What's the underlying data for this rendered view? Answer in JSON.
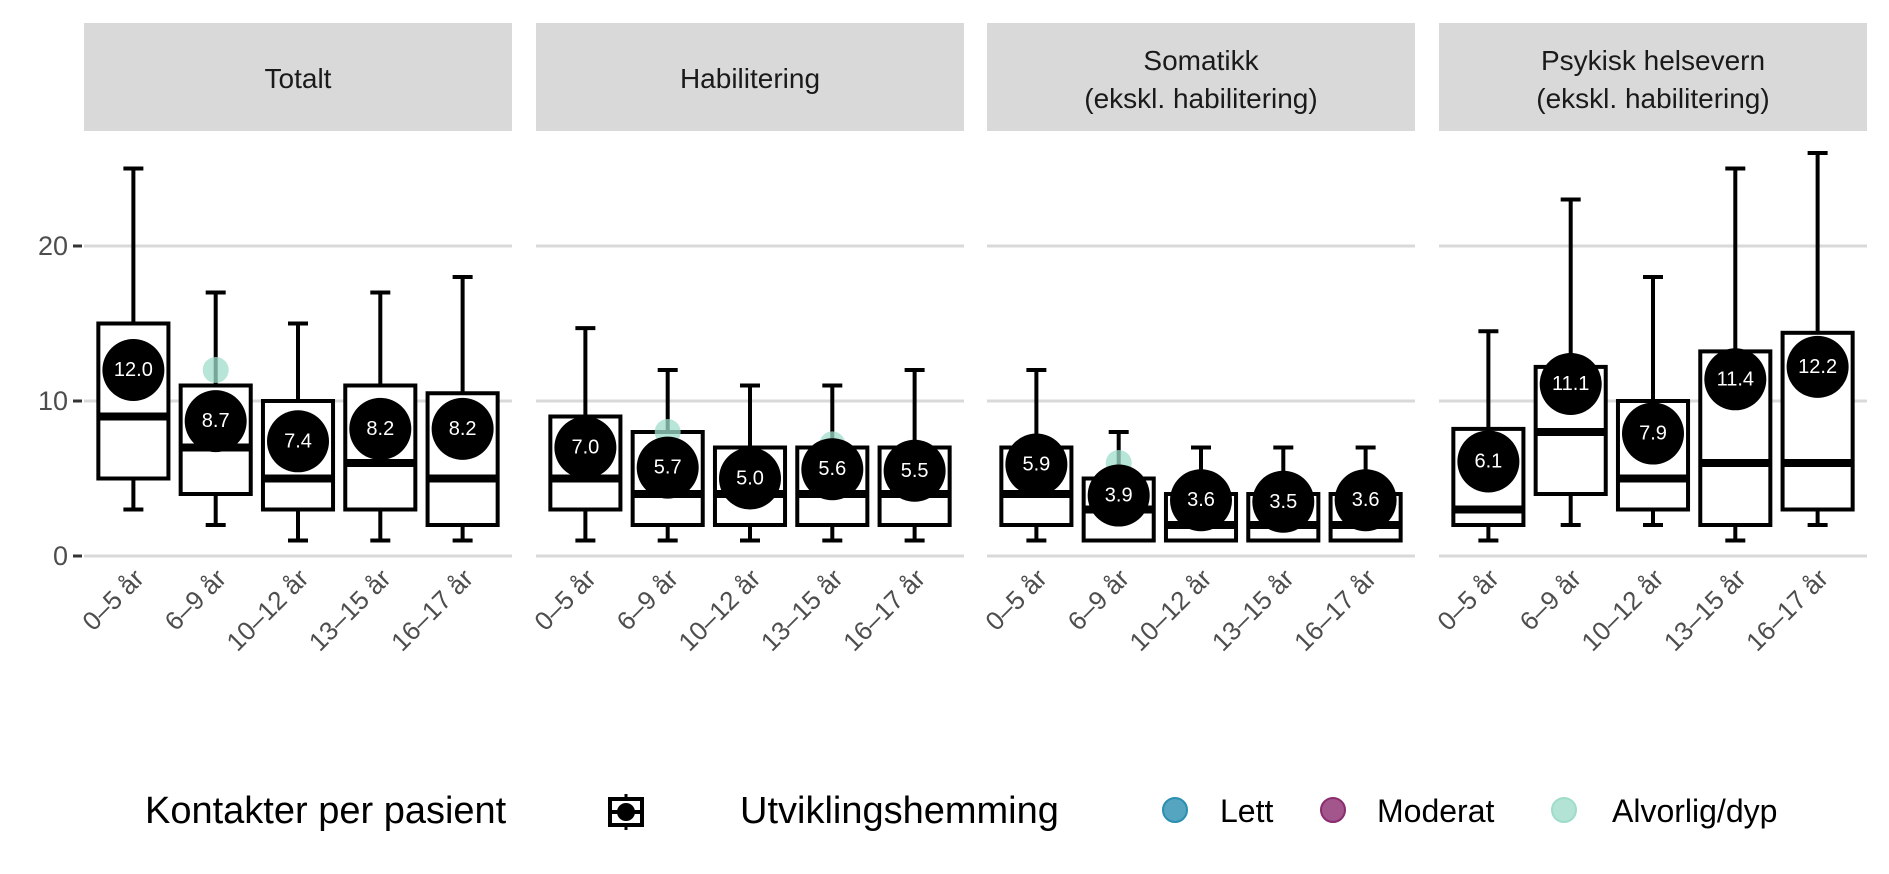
{
  "chart_data": {
    "type": "boxplot",
    "facets": [
      "Totalt",
      "Habilitering",
      "Somatikk\n(ekskl. habilitering)",
      "Psykisk helsevern\n(ekskl. habilitering)"
    ],
    "categories": [
      "0–5 år",
      "6–9 år",
      "10–12 år",
      "13–15 år",
      "16–17 år"
    ],
    "ylim": [
      0,
      26.5
    ],
    "yticks": [
      0,
      10,
      20
    ],
    "grid": true,
    "xlabel": "",
    "ylabel": "",
    "panels": [
      {
        "facet": "Totalt",
        "boxes": [
          {
            "min": 3,
            "q1": 5,
            "median": 9,
            "q3": 15,
            "max": 25,
            "mean": 12.0,
            "mean_label": "12.0"
          },
          {
            "min": 2,
            "q1": 4,
            "median": 7,
            "q3": 11,
            "max": 17,
            "mean": 8.7,
            "mean_label": "8.7"
          },
          {
            "min": 1,
            "q1": 3,
            "median": 5,
            "q3": 10,
            "max": 15,
            "mean": 7.4,
            "mean_label": "7.4"
          },
          {
            "min": 1,
            "q1": 3,
            "median": 6,
            "q3": 11,
            "max": 17,
            "mean": 8.2,
            "mean_label": "8.2"
          },
          {
            "min": 1,
            "q1": 2,
            "median": 5,
            "q3": 10.5,
            "max": 18,
            "mean": 8.2,
            "mean_label": "8.2"
          }
        ],
        "points": [
          {
            "category": 1,
            "group": "Alvorlig/dyp",
            "value": 12
          }
        ]
      },
      {
        "facet": "Habilitering",
        "boxes": [
          {
            "min": 1,
            "q1": 3,
            "median": 5,
            "q3": 9,
            "max": 14.7,
            "mean": 7.0,
            "mean_label": "7.0"
          },
          {
            "min": 1,
            "q1": 2,
            "median": 4,
            "q3": 8,
            "max": 12,
            "mean": 5.7,
            "mean_label": "5.7"
          },
          {
            "min": 1,
            "q1": 2,
            "median": 4,
            "q3": 7,
            "max": 11,
            "mean": 5.0,
            "mean_label": "5.0"
          },
          {
            "min": 1,
            "q1": 2,
            "median": 4,
            "q3": 7,
            "max": 11,
            "mean": 5.6,
            "mean_label": "5.6"
          },
          {
            "min": 1,
            "q1": 2,
            "median": 4,
            "q3": 7,
            "max": 12,
            "mean": 5.5,
            "mean_label": "5.5"
          }
        ],
        "points": [
          {
            "category": 1,
            "group": "Alvorlig/dyp",
            "value": 8
          },
          {
            "category": 3,
            "group": "Alvorlig/dyp",
            "value": 7.2
          }
        ]
      },
      {
        "facet": "Somatikk (ekskl. habilitering)",
        "boxes": [
          {
            "min": 1,
            "q1": 2,
            "median": 4,
            "q3": 7,
            "max": 12,
            "mean": 5.9,
            "mean_label": "5.9"
          },
          {
            "min": 1,
            "q1": 1,
            "median": 3,
            "q3": 5,
            "max": 8,
            "mean": 3.9,
            "mean_label": "3.9"
          },
          {
            "min": 1,
            "q1": 1,
            "median": 2,
            "q3": 4,
            "max": 7,
            "mean": 3.6,
            "mean_label": "3.6"
          },
          {
            "min": 1,
            "q1": 1,
            "median": 2,
            "q3": 4,
            "max": 7,
            "mean": 3.5,
            "mean_label": "3.5"
          },
          {
            "min": 1,
            "q1": 1,
            "median": 2,
            "q3": 4,
            "max": 7,
            "mean": 3.6,
            "mean_label": "3.6"
          }
        ],
        "points": [
          {
            "category": 1,
            "group": "Alvorlig/dyp",
            "value": 6
          }
        ]
      },
      {
        "facet": "Psykisk helsevern (ekskl. habilitering)",
        "boxes": [
          {
            "min": 1,
            "q1": 2,
            "median": 3,
            "q3": 8.2,
            "max": 14.5,
            "mean": 6.1,
            "mean_label": "6.1"
          },
          {
            "min": 2,
            "q1": 4,
            "median": 8,
            "q3": 12.2,
            "max": 23,
            "mean": 11.1,
            "mean_label": "11.1"
          },
          {
            "min": 2,
            "q1": 3,
            "median": 5,
            "q3": 10,
            "max": 18,
            "mean": 7.9,
            "mean_label": "7.9"
          },
          {
            "min": 1,
            "q1": 2,
            "median": 6,
            "q3": 13.2,
            "max": 25,
            "mean": 11.4,
            "mean_label": "11.4"
          },
          {
            "min": 2,
            "q1": 3,
            "median": 6,
            "q3": 14.4,
            "max": 26,
            "mean": 12.2,
            "mean_label": "12.2"
          }
        ],
        "points": []
      }
    ],
    "legend": {
      "position": "bottom",
      "box_title": "Kontakter per pasient",
      "group_title": "Utviklingshemming",
      "groups": [
        {
          "name": "Lett",
          "color": "#2a8fb0"
        },
        {
          "name": "Moderat",
          "color": "#8b2c6e"
        },
        {
          "name": "Alvorlig/dyp",
          "color": "#9fdcca"
        }
      ]
    }
  }
}
